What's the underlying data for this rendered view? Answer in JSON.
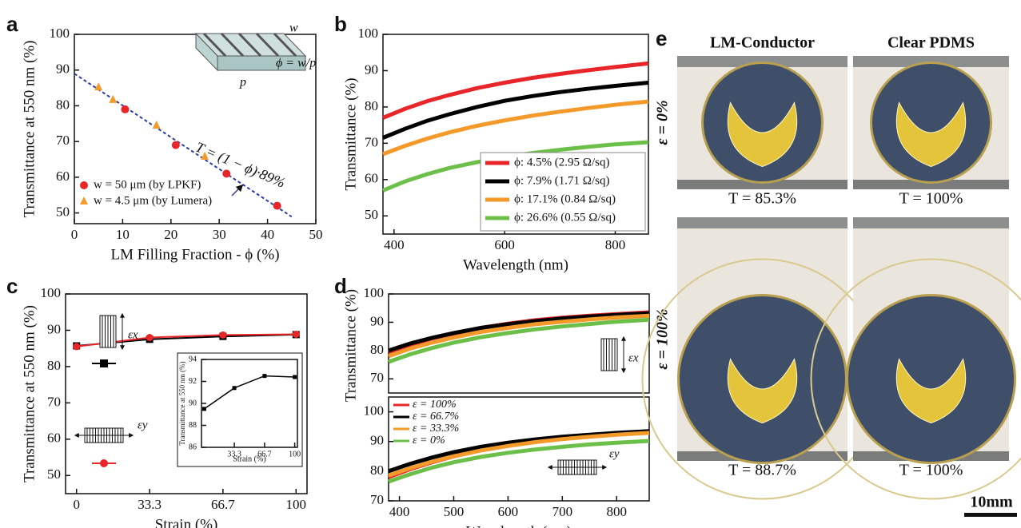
{
  "chart_data": [
    {
      "type": "scatter",
      "panel": "a",
      "x_label": "LM Filling Fraction - ϕ (%)",
      "y_label": "Transmittance at 550 nm (%)",
      "xlim": [
        0,
        50
      ],
      "xticks": [
        0,
        10,
        20,
        30,
        40,
        50
      ],
      "ylim": [
        47,
        100
      ],
      "yticks": [
        50,
        60,
        70,
        80,
        90,
        100
      ],
      "series": [
        {
          "name": "w = 50 μm (by LPKF)",
          "color": "#e8262a",
          "marker": "circle",
          "x": [
            10.5,
            21,
            31.5,
            42
          ],
          "values": [
            79,
            69,
            61,
            52
          ]
        },
        {
          "name": "w = 4.5 μm (by Lumera)",
          "color": "#f39a2b",
          "marker": "triangle",
          "x": [
            5,
            8,
            17,
            27
          ],
          "values": [
            85.2,
            81.7,
            74.5,
            65.8
          ]
        }
      ],
      "fit_line": {
        "x": [
          0,
          45
        ],
        "values": [
          89,
          48.95
        ],
        "color": "#2b3ea0"
      },
      "annotation": "T = (1 − ϕ)·89%",
      "schematic_labels": [
        "w",
        "p",
        "ϕ = w/p"
      ],
      "legend": "lower left"
    },
    {
      "type": "line",
      "panel": "b",
      "x_label": "Wavelength (nm)",
      "y_label": "Transmittance (%)",
      "xlim": [
        380,
        860
      ],
      "xticks": [
        400,
        600,
        800
      ],
      "ylim": [
        45,
        100
      ],
      "yticks": [
        50,
        60,
        70,
        80,
        90,
        100
      ],
      "x": [
        380,
        420,
        460,
        500,
        550,
        600,
        650,
        700,
        750,
        800,
        860
      ],
      "series": [
        {
          "name": "ϕ: 4.5% (2.95 Ω/sq)",
          "color": "#e8262a",
          "values": [
            77,
            79.5,
            81.6,
            83.3,
            85.2,
            86.7,
            88,
            89.1,
            90.1,
            91,
            92
          ]
        },
        {
          "name": "ϕ: 7.9% (1.71 Ω/sq)",
          "color": "#000000",
          "values": [
            71.5,
            74,
            76.2,
            78,
            80,
            81.7,
            83,
            84.1,
            85,
            85.8,
            86.7
          ]
        },
        {
          "name": "ϕ: 17.1% (0.84 Ω/sq)",
          "color": "#f39a2b",
          "values": [
            67,
            69.3,
            71.3,
            73,
            74.8,
            76.3,
            77.6,
            78.7,
            79.7,
            80.6,
            81.5
          ]
        },
        {
          "name": "ϕ: 26.6% (0.55 Ω/sq)",
          "color": "#6cc04a",
          "values": [
            57,
            59.5,
            61.5,
            63.2,
            64.8,
            66.2,
            67.3,
            68.2,
            69,
            69.7,
            70.3
          ]
        }
      ],
      "legend": "lower right"
    },
    {
      "type": "line",
      "panel": "c",
      "x_label": "Strain (%)",
      "y_label": "Transmittance at 550 nm (%)",
      "xlim": [
        -5,
        105
      ],
      "xticks": [
        0,
        33.3,
        66.7,
        100
      ],
      "ylim": [
        45,
        100
      ],
      "yticks": [
        50,
        60,
        70,
        80,
        90,
        100
      ],
      "x": [
        0,
        33.3,
        66.7,
        100
      ],
      "markers": true,
      "series": [
        {
          "name": "εx",
          "color": "#000000",
          "marker": "square",
          "values": [
            85.7,
            87.5,
            88.3,
            88.8
          ]
        },
        {
          "name": "εy",
          "color": "#e8262a",
          "marker": "circle",
          "values": [
            85.5,
            88,
            88.7,
            88.9
          ]
        }
      ],
      "legend": "left",
      "inset": {
        "type": "line",
        "x_label": "Strain (%)",
        "y_label": "Transmittance at 550 nm (%)",
        "color": "#000000",
        "x": [
          0,
          33.3,
          66.7,
          100
        ],
        "values": [
          89.5,
          91.4,
          92.5,
          92.4
        ],
        "xlim": [
          -3,
          103
        ],
        "xticks": [
          33.3,
          66.7,
          100
        ],
        "ylim": [
          86,
          94
        ],
        "yticks": [
          86,
          88,
          90,
          92,
          94
        ]
      }
    },
    {
      "type": "line",
      "panel": "d",
      "y_label": "Transmittance (%)",
      "strain_label": "εx",
      "xlim": [
        380,
        860
      ],
      "ylim": [
        65,
        100
      ],
      "yticks": [
        70,
        80,
        90,
        100
      ],
      "x": [
        380,
        420,
        460,
        500,
        550,
        600,
        650,
        700,
        750,
        800,
        860
      ],
      "series": [
        {
          "color": "#e8262a",
          "values": [
            79.5,
            82,
            84.3,
            86,
            88,
            89.5,
            90.7,
            91.6,
            92.3,
            92.9,
            93.5
          ]
        },
        {
          "color": "#000000",
          "values": [
            80,
            82.5,
            84.5,
            86.2,
            88,
            89.3,
            90.4,
            91.3,
            92,
            92.6,
            93.2
          ]
        },
        {
          "color": "#f39a2b",
          "values": [
            78,
            80.7,
            82.8,
            84.6,
            86.6,
            88,
            89.3,
            90.2,
            91,
            91.7,
            92.3
          ]
        },
        {
          "color": "#6cc04a",
          "values": [
            76,
            78.7,
            80.9,
            82.8,
            84.7,
            86.2,
            87.5,
            88.5,
            89.4,
            90.2,
            90.9
          ]
        }
      ]
    },
    {
      "type": "line",
      "x_label": "Wavelength (nm)",
      "strain_label": "εy",
      "xlim": [
        380,
        860
      ],
      "xticks": [
        400,
        500,
        600,
        700,
        800
      ],
      "ylim": [
        70,
        105
      ],
      "yticks": [
        70,
        80,
        90,
        100
      ],
      "x": [
        380,
        420,
        460,
        500,
        550,
        600,
        650,
        700,
        750,
        800,
        860
      ],
      "series": [
        {
          "name": "ε = 100%",
          "color": "#e8262a",
          "values": [
            78,
            80.7,
            83,
            85,
            87.2,
            88.8,
            90.1,
            91.1,
            92,
            92.7,
            93.4
          ]
        },
        {
          "name": "ε = 66.7%",
          "color": "#000000",
          "values": [
            80,
            82.5,
            84.6,
            86.4,
            88.2,
            89.6,
            90.7,
            91.6,
            92.3,
            92.9,
            93.5
          ]
        },
        {
          "name": "ε = 33.3%",
          "color": "#f39a2b",
          "values": [
            78.5,
            81,
            83.2,
            85,
            87,
            88.5,
            89.8,
            90.8,
            91.6,
            92.3,
            92.9
          ]
        },
        {
          "name": "ε = 0%",
          "color": "#6cc04a",
          "values": [
            76.5,
            79,
            81.2,
            83,
            84.8,
            86.2,
            87.3,
            88.2,
            89,
            89.6,
            90.2
          ]
        }
      ],
      "legend": "upper left"
    }
  ],
  "photo_panel": {
    "label": "e",
    "columns": [
      "LM-Conductor",
      "Clear PDMS"
    ],
    "rows": [
      "ε = 0%",
      "ε = 100%"
    ],
    "captions": [
      [
        "T = 85.3%",
        "T = 100%"
      ],
      [
        "T = 88.7%",
        "T = 100%"
      ]
    ],
    "scale_bar": "10mm"
  }
}
